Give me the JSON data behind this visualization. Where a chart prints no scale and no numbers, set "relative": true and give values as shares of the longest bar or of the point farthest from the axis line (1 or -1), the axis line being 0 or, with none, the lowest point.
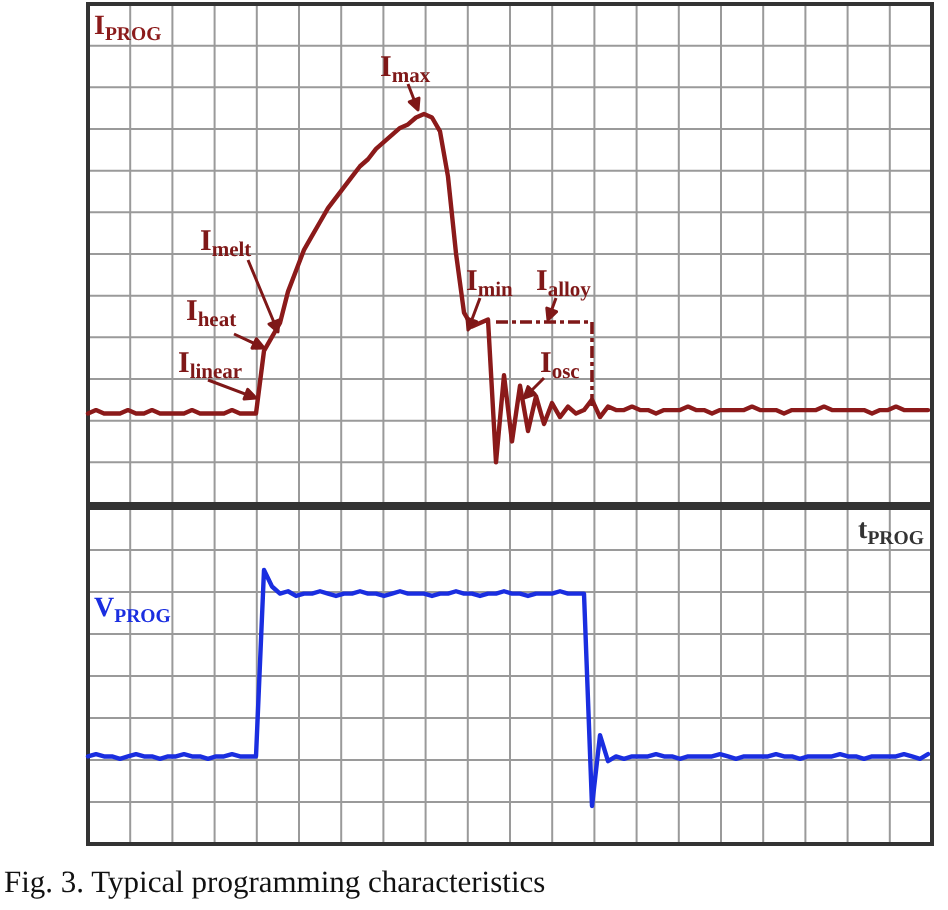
{
  "chart_data": [
    {
      "type": "line",
      "relative": true,
      "grid": true,
      "ylabel": "I$_{PROG}$",
      "annotations": [
        "I$_{max}$",
        "I$_{melt}$",
        "I$_{heat}$",
        "I$_{linear}$",
        "I$_{min}$",
        "I$_{alloy}$",
        "I$_{osc}$"
      ],
      "categories": [
        null,
        null,
        null,
        null,
        null,
        null,
        null,
        null,
        null,
        null,
        null,
        null,
        null,
        null,
        null,
        null,
        null,
        null,
        null,
        null,
        null,
        null,
        null,
        null,
        null,
        null,
        null,
        null,
        null,
        null,
        null,
        null,
        null,
        null,
        null,
        null,
        null,
        null,
        null,
        null,
        null,
        null,
        null,
        null,
        null,
        null,
        null,
        null,
        null,
        null,
        null,
        null,
        null,
        null,
        null,
        null,
        null,
        null,
        null,
        null,
        null,
        null,
        null,
        null,
        null,
        null,
        null,
        null,
        null,
        null,
        null,
        null,
        null,
        null,
        null,
        null,
        null,
        null,
        null,
        null,
        null,
        null,
        null,
        null,
        null,
        null,
        null,
        null,
        null,
        null,
        null,
        null,
        null,
        null,
        null,
        null,
        null,
        null,
        null,
        null,
        null,
        null,
        null,
        null,
        null,
        null
      ],
      "series": [
        {
          "color": "#8b1a1a",
          "values": [
            0.14,
            0.15,
            0.14,
            0.14,
            0.14,
            0.15,
            0.14,
            0.14,
            0.15,
            0.14,
            0.14,
            0.14,
            0.14,
            0.15,
            0.14,
            0.14,
            0.14,
            0.14,
            0.15,
            0.14,
            0.14,
            0.14,
            0.32,
            0.36,
            0.4,
            0.49,
            0.55,
            0.61,
            0.65,
            0.69,
            0.73,
            0.76,
            0.79,
            0.82,
            0.85,
            0.87,
            0.9,
            0.92,
            0.94,
            0.96,
            0.97,
            0.99,
            1,
            0.99,
            0.95,
            0.82,
            0.6,
            0.43,
            0.39,
            0.4,
            0.41,
            0,
            0.25,
            0.06,
            0.22,
            0.09,
            0.19,
            0.11,
            0.17,
            0.13,
            0.16,
            0.14,
            0.15,
            0.18,
            0.13,
            0.16,
            0.15,
            0.15,
            0.16,
            0.15,
            0.15,
            0.14,
            0.15,
            0.15,
            0.15,
            0.16,
            0.15,
            0.15,
            0.14,
            0.15,
            0.15,
            0.15,
            0.15,
            0.16,
            0.15,
            0.15,
            0.15,
            0.14,
            0.15,
            0.15,
            0.15,
            0.15,
            0.16,
            0.15,
            0.15,
            0.15,
            0.15,
            0.15,
            0.14,
            0.15,
            0.15,
            0.16,
            0.15,
            0.15,
            0.15,
            0.15
          ]
        }
      ]
    },
    {
      "type": "line",
      "relative": true,
      "grid": true,
      "ylabel": "V$_{PROG}$",
      "xlabel": "t$_{PROG}$",
      "annotations": [
        "Fig. 3. Typical programming characteristics"
      ],
      "categories": [
        null,
        null,
        null,
        null,
        null,
        null,
        null,
        null,
        null,
        null,
        null,
        null,
        null,
        null,
        null,
        null,
        null,
        null,
        null,
        null,
        null,
        null,
        null,
        null,
        null,
        null,
        null,
        null,
        null,
        null,
        null,
        null,
        null,
        null,
        null,
        null,
        null,
        null,
        null,
        null,
        null,
        null,
        null,
        null,
        null,
        null,
        null,
        null,
        null,
        null,
        null,
        null,
        null,
        null,
        null,
        null,
        null,
        null,
        null,
        null,
        null,
        null,
        null,
        null,
        null,
        null,
        null,
        null,
        null,
        null,
        null,
        null,
        null,
        null,
        null,
        null,
        null,
        null,
        null,
        null,
        null,
        null,
        null,
        null,
        null,
        null,
        null,
        null,
        null,
        null,
        null,
        null,
        null,
        null,
        null,
        null,
        null,
        null,
        null,
        null,
        null,
        null,
        null,
        null,
        null,
        null
      ],
      "series": [
        {
          "color": "#1a2ee0",
          "values": [
            0.21,
            0.22,
            0.21,
            0.21,
            0.2,
            0.21,
            0.22,
            0.21,
            0.21,
            0.2,
            0.21,
            0.21,
            0.22,
            0.21,
            0.21,
            0.2,
            0.21,
            0.21,
            0.22,
            0.21,
            0.21,
            0.21,
            1,
            0.93,
            0.9,
            0.91,
            0.89,
            0.9,
            0.9,
            0.91,
            0.9,
            0.89,
            0.9,
            0.9,
            0.91,
            0.9,
            0.9,
            0.89,
            0.9,
            0.91,
            0.9,
            0.9,
            0.9,
            0.89,
            0.9,
            0.9,
            0.91,
            0.9,
            0.9,
            0.89,
            0.9,
            0.9,
            0.91,
            0.9,
            0.9,
            0.89,
            0.9,
            0.9,
            0.9,
            0.91,
            0.9,
            0.9,
            0.9,
            0,
            0.3,
            0.19,
            0.21,
            0.2,
            0.21,
            0.21,
            0.21,
            0.22,
            0.21,
            0.21,
            0.2,
            0.21,
            0.21,
            0.21,
            0.21,
            0.22,
            0.21,
            0.2,
            0.21,
            0.21,
            0.21,
            0.21,
            0.22,
            0.21,
            0.21,
            0.2,
            0.21,
            0.21,
            0.21,
            0.21,
            0.22,
            0.21,
            0.21,
            0.2,
            0.21,
            0.21,
            0.21,
            0.21,
            0.22,
            0.21,
            0.2,
            0.22
          ]
        }
      ]
    }
  ]
}
